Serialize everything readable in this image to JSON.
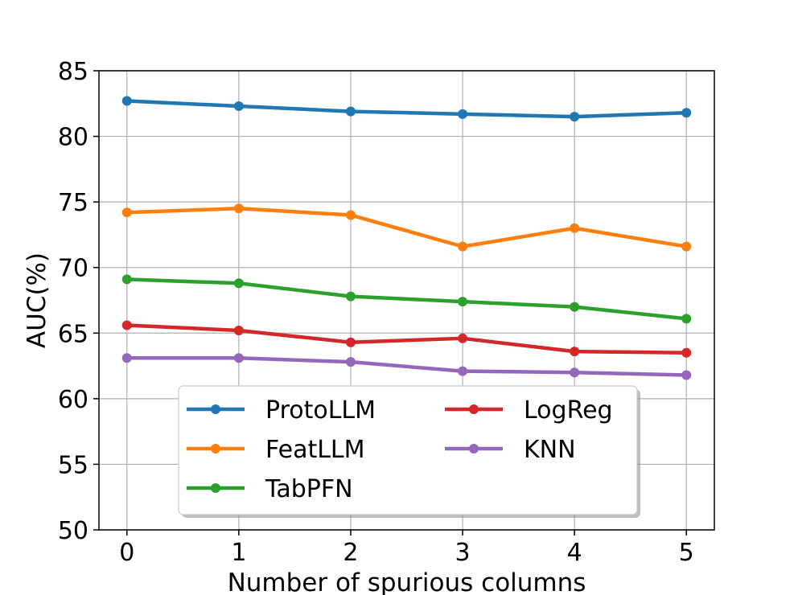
{
  "chart_data": {
    "type": "line",
    "title": "",
    "xlabel": "Number of spurious columns",
    "ylabel": "AUC(%)",
    "x": [
      0,
      1,
      2,
      3,
      4,
      5
    ],
    "xlim": [
      -0.25,
      5.25
    ],
    "ylim": [
      50,
      85
    ],
    "xticks": [
      "0",
      "1",
      "2",
      "3",
      "4",
      "5"
    ],
    "yticks": [
      "50",
      "55",
      "60",
      "65",
      "70",
      "75",
      "80",
      "85"
    ],
    "grid": true,
    "legend_position": "lower-center",
    "series": [
      {
        "name": "ProtoLLM",
        "color": "#1f77b4",
        "values": [
          82.7,
          82.3,
          81.9,
          81.7,
          81.5,
          81.8
        ]
      },
      {
        "name": "FeatLLM",
        "color": "#ff7f0e",
        "values": [
          74.2,
          74.5,
          74.0,
          71.6,
          73.0,
          71.6
        ]
      },
      {
        "name": "TabPFN",
        "color": "#2ca02c",
        "values": [
          69.1,
          68.8,
          67.8,
          67.4,
          67.0,
          66.1
        ]
      },
      {
        "name": "LogReg",
        "color": "#d62728",
        "values": [
          65.6,
          65.2,
          64.3,
          64.6,
          63.6,
          63.5
        ]
      },
      {
        "name": "KNN",
        "color": "#9467bd",
        "values": [
          63.1,
          63.1,
          62.8,
          62.1,
          62.0,
          61.8
        ]
      }
    ]
  }
}
